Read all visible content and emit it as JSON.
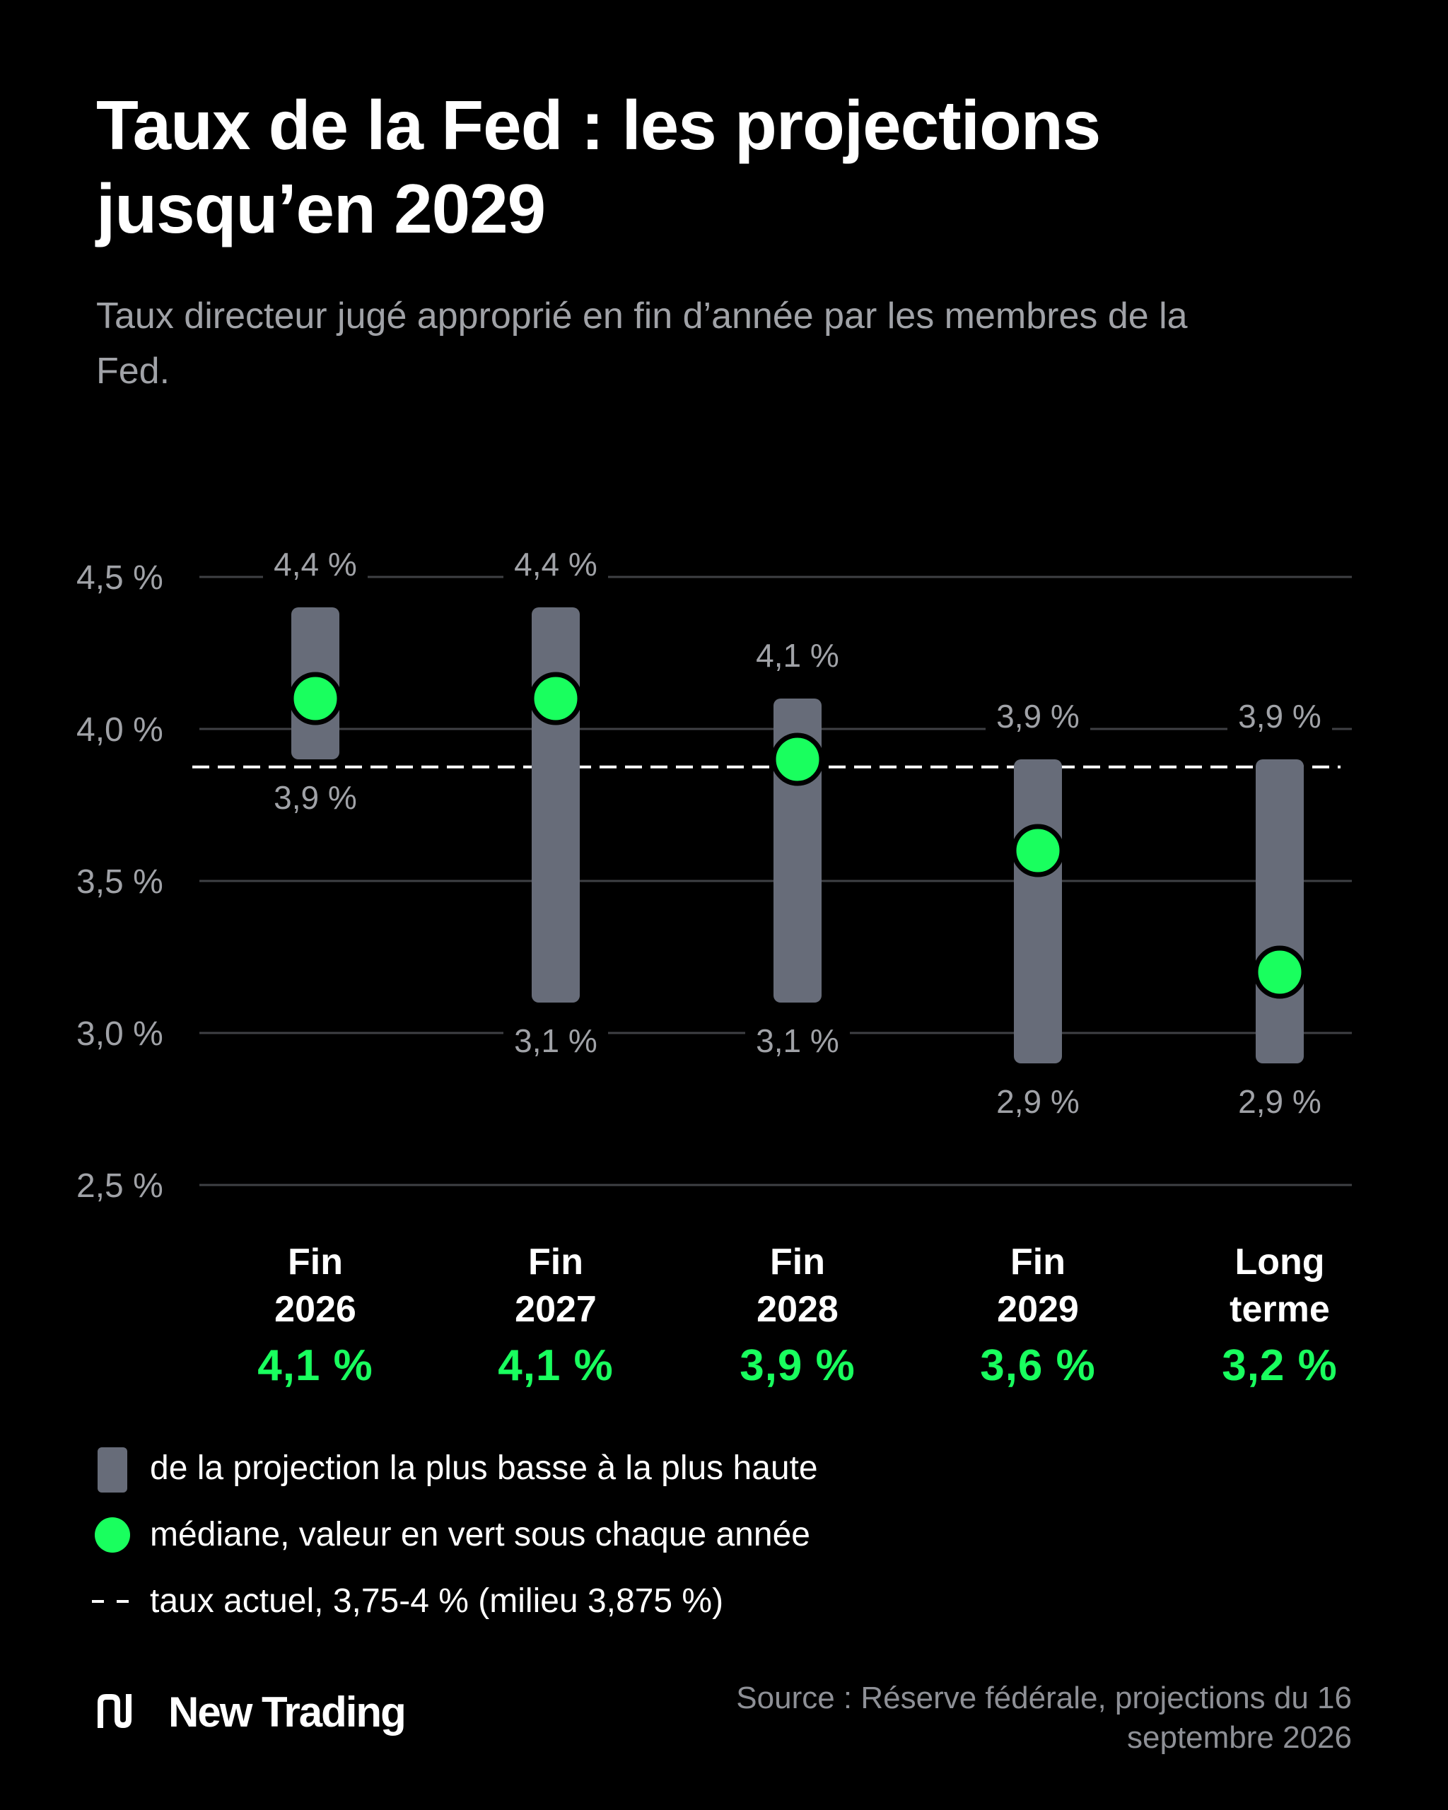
{
  "title": "Taux de la Fed : les projections jusqu’en 2029",
  "subtitle": "Taux directeur jugé approprié en fin d’année par les membres de la Fed.",
  "chart_data": {
    "type": "range",
    "y_unit_suffix": " %",
    "ylim": [
      2.5,
      4.5
    ],
    "y_ticks": [
      4.5,
      4.0,
      3.5,
      3.0,
      2.5
    ],
    "y_tick_labels": [
      "4,5 %",
      "4,0 %",
      "3,5 %",
      "3,0 %",
      "2,5 %"
    ],
    "grid": true,
    "current_rate": 3.875,
    "categories": [
      {
        "label_line1": "Fin",
        "label_line2": "2026",
        "low": 3.9,
        "high": 4.4,
        "median": 4.1,
        "low_label": "3,9 %",
        "high_label": "4,4 %",
        "median_label": "4,1 %"
      },
      {
        "label_line1": "Fin",
        "label_line2": "2027",
        "low": 3.1,
        "high": 4.4,
        "median": 4.1,
        "low_label": "3,1 %",
        "high_label": "4,4 %",
        "median_label": "4,1 %"
      },
      {
        "label_line1": "Fin",
        "label_line2": "2028",
        "low": 3.1,
        "high": 4.1,
        "median": 3.9,
        "low_label": "3,1 %",
        "high_label": "4,1 %",
        "median_label": "3,9 %"
      },
      {
        "label_line1": "Fin",
        "label_line2": "2029",
        "low": 2.9,
        "high": 3.9,
        "median": 3.6,
        "low_label": "2,9 %",
        "high_label": "3,9 %",
        "median_label": "3,6 %"
      },
      {
        "label_line1": "Long",
        "label_line2": "terme",
        "low": 2.9,
        "high": 3.9,
        "median": 3.2,
        "low_label": "2,9 %",
        "high_label": "3,9 %",
        "median_label": "3,2 %"
      }
    ]
  },
  "legend": {
    "range": "de la projection la plus basse à la plus haute",
    "median": "médiane, valeur en vert sous chaque année",
    "current": "taux actuel, 3,75-4 % (milieu 3,875 %)"
  },
  "footer": {
    "brand": "New Trading",
    "source": "Source : Réserve fédérale, projections du 16 septembre 2026"
  },
  "colors": {
    "background": "#000000",
    "range_bar": "#676c79",
    "median_dot": "#19ff5e",
    "grid": "#3f4145",
    "axis_text": "#a0a2a7"
  }
}
